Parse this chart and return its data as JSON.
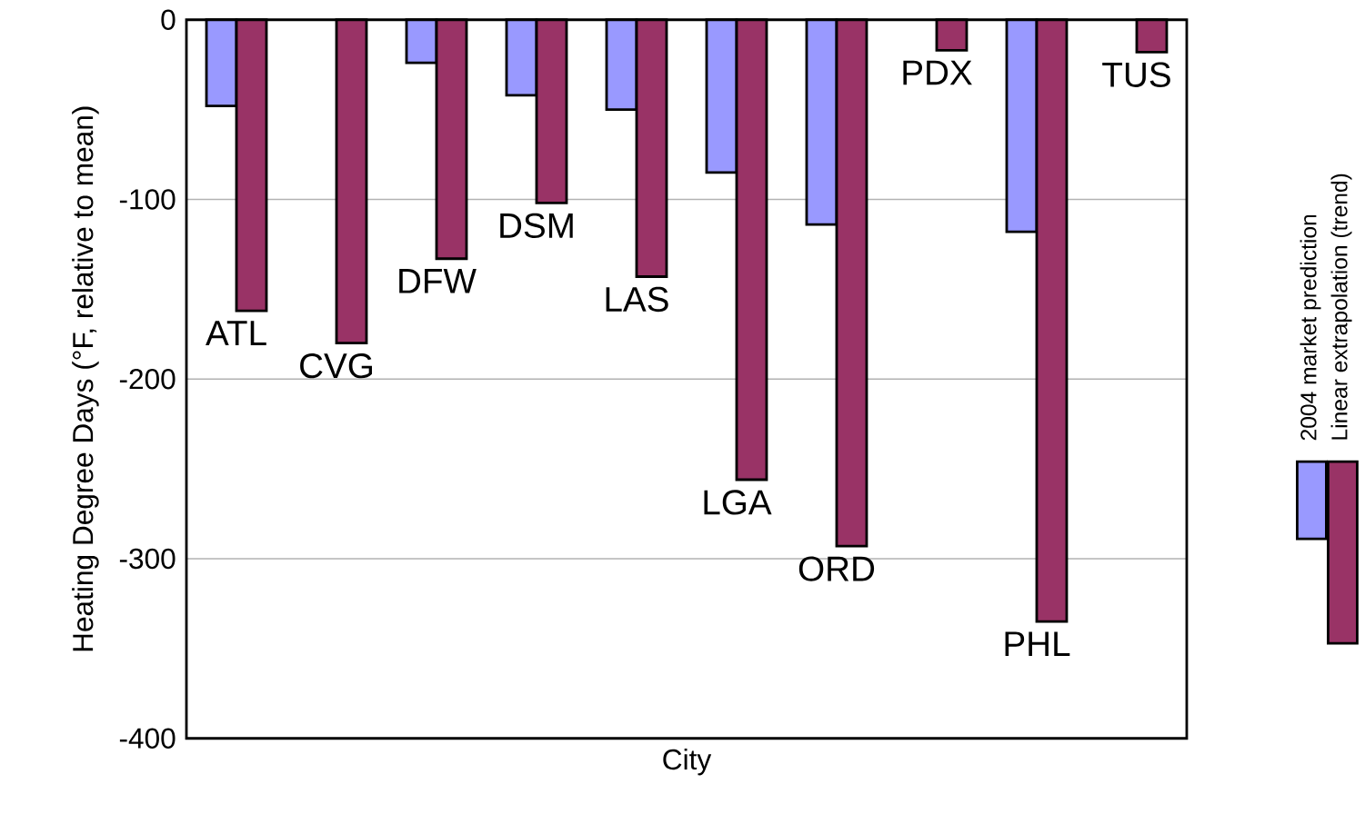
{
  "chart_data": {
    "type": "bar",
    "xlabel": "City",
    "ylabel": "Heating Degree Days (°F, relative to mean)",
    "categories": [
      "ATL",
      "CVG",
      "DFW",
      "DSM",
      "LAS",
      "LGA",
      "ORD",
      "PDX",
      "PHL",
      "TUS"
    ],
    "series": [
      {
        "name": "2004 market prediction",
        "color": "#9999ff",
        "values": [
          -48,
          null,
          -24,
          -42,
          -50,
          -85,
          -114,
          null,
          -118,
          null
        ]
      },
      {
        "name": "Linear extrapolation (trend)",
        "color": "#993366",
        "values": [
          -162,
          -180,
          -133,
          -102,
          -143,
          -256,
          -293,
          -17,
          -335,
          -18
        ]
      }
    ],
    "ylim": [
      -400,
      0
    ],
    "yticks": [
      -400,
      -300,
      -200,
      -100,
      0
    ],
    "grid": "y",
    "legend": "right"
  }
}
